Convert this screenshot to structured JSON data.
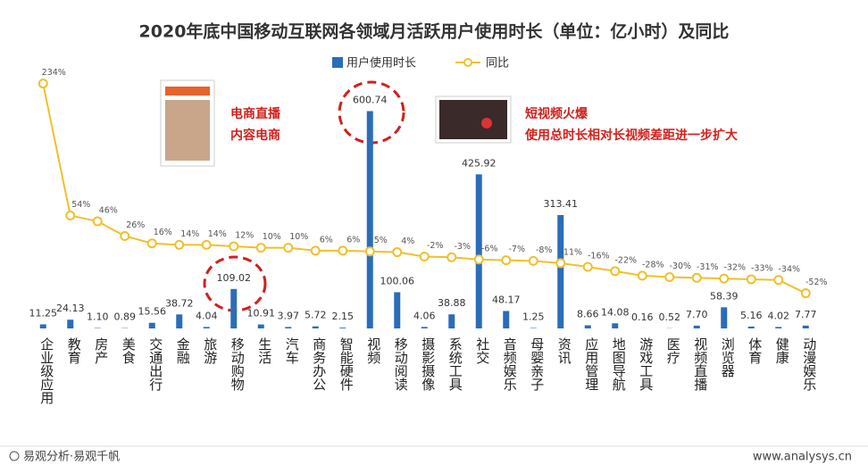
{
  "chart_data": {
    "type": "bar",
    "title": "2020年底中国移动互联网各领域月活跃用户使用时长（单位：亿小时）及同比",
    "categories": [
      "企业级应用",
      "教育",
      "房产",
      "美食",
      "交通出行",
      "金融",
      "旅游",
      "移动购物",
      "生活",
      "汽车",
      "商务办公",
      "智能硬件",
      "视频",
      "移动阅读",
      "摄影摄像",
      "系统工具",
      "社交",
      "音频娱乐",
      "母婴亲子",
      "资讯",
      "应用管理",
      "地图导航",
      "游戏工具",
      "医疗",
      "视频直播",
      "浏览器",
      "体育",
      "健康",
      "动漫娱乐"
    ],
    "series": [
      {
        "name": "用户使用时长",
        "color": "#2a6db8",
        "values": [
          11.25,
          24.13,
          1.1,
          0.89,
          15.56,
          38.72,
          4.04,
          109.02,
          10.91,
          3.97,
          5.72,
          2.15,
          600.74,
          100.06,
          4.06,
          38.88,
          425.92,
          48.17,
          1.25,
          313.41,
          8.66,
          14.08,
          0.16,
          0.52,
          7.7,
          58.39,
          5.16,
          4.02,
          7.77
        ],
        "value_labels": [
          "11.25",
          "24.13",
          "1.10",
          "0.89",
          "15.56",
          "38.72",
          "4.04",
          "109.02",
          "10.91",
          "3.97",
          "5.72",
          "2.15",
          "600.74",
          "100.06",
          "4.06",
          "38.88",
          "425.92",
          "48.17",
          "1.25",
          "313.41",
          "8.66",
          "14.08",
          "0.16",
          "0.52",
          "7.70",
          "58.39",
          "5.16",
          "4.02",
          "7.77"
        ]
      },
      {
        "name": "同比",
        "type": "line",
        "axis": "y2",
        "color": "#f0c02c",
        "values": [
          234,
          54,
          46,
          26,
          16,
          14,
          14,
          12,
          10,
          10,
          6,
          6,
          5,
          4,
          -2,
          -3,
          -6,
          -7,
          -8,
          -11,
          -16,
          -22,
          -28,
          -30,
          -31,
          -32,
          -33,
          -34,
          -52
        ],
        "value_labels": [
          "234%",
          "54%",
          "46%",
          "26%",
          "16%",
          "14%",
          "14%",
          "12%",
          "10%",
          "10%",
          "6%",
          "6%",
          "5%",
          "4%",
          "-2%",
          "-3%",
          "-6%",
          "-7%",
          "-8%",
          "-11%",
          "-16%",
          "-22%",
          "-28%",
          "-30%",
          "-31%",
          "-32%",
          "-33%",
          "-34%",
          "-52%"
        ]
      }
    ],
    "ylim": [
      0,
      750
    ],
    "y2lim": [
      -100,
      270
    ],
    "annotations": [
      "电商直播",
      "内容电商",
      "短视频火爆",
      "使用总时长相对长视频差距进一步扩大"
    ],
    "source": "易观分析·易观千帆",
    "website": "www.analysys.cn"
  }
}
